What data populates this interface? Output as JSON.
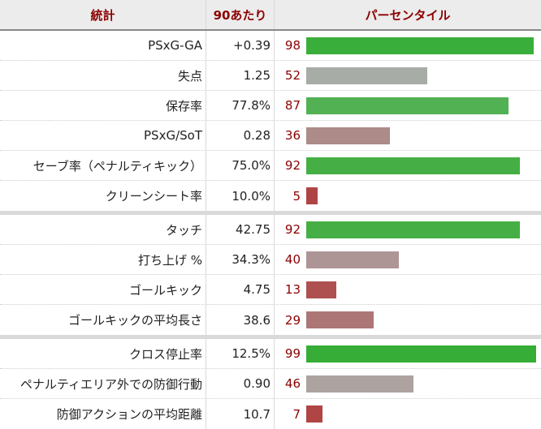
{
  "header": {
    "stat": "統計",
    "per90": "90あたり",
    "percentile": "パーセンタイル"
  },
  "sections": [
    [
      {
        "label": "PSxG-GA",
        "value": "+0.39",
        "pct": "98",
        "color": "#3aae3a"
      },
      {
        "label": "失点",
        "value": "1.25",
        "pct": "52",
        "color": "#a8aca6"
      },
      {
        "label": "保存率",
        "value": "77.8%",
        "pct": "87",
        "color": "#52b152"
      },
      {
        "label": "PSxG/SoT",
        "value": "0.28",
        "pct": "36",
        "color": "#ad8b88"
      },
      {
        "label": "セーブ率（ペナルティキック）",
        "value": "75.0%",
        "pct": "92",
        "color": "#45af45"
      },
      {
        "label": "クリーンシート率",
        "value": "10.0%",
        "pct": "5",
        "color": "#b04444"
      }
    ],
    [
      {
        "label": "タッチ",
        "value": "42.75",
        "pct": "92",
        "color": "#45af45"
      },
      {
        "label": "打ち上げ %",
        "value": "34.3%",
        "pct": "40",
        "color": "#ae9595"
      },
      {
        "label": "ゴールキック",
        "value": "4.75",
        "pct": "13",
        "color": "#ae5050"
      },
      {
        "label": "ゴールキックの平均長さ",
        "value": "38.6",
        "pct": "29",
        "color": "#ad7676"
      }
    ],
    [
      {
        "label": "クロス停止率",
        "value": "12.5%",
        "pct": "99",
        "color": "#36ad36"
      },
      {
        "label": "ペナルティエリア外での防御行動",
        "value": "0.90",
        "pct": "46",
        "color": "#aca2a0"
      },
      {
        "label": "防御アクションの平均距離",
        "value": "10.7",
        "pct": "7",
        "color": "#b04545"
      }
    ]
  ],
  "chart_data": {
    "type": "bar",
    "orientation": "horizontal",
    "title": "",
    "columns": [
      "統計",
      "90あたり",
      "パーセンタイル"
    ],
    "categories": [
      "PSxG-GA",
      "失点",
      "保存率",
      "PSxG/SoT",
      "セーブ率（ペナルティキック）",
      "クリーンシート率",
      "タッチ",
      "打ち上げ %",
      "ゴールキック",
      "ゴールキックの平均長さ",
      "クロス停止率",
      "ペナルティエリア外での防御行動",
      "防御アクションの平均距離"
    ],
    "per90": [
      "+0.39",
      "1.25",
      "77.8%",
      "0.28",
      "75.0%",
      "10.0%",
      "42.75",
      "34.3%",
      "4.75",
      "38.6",
      "12.5%",
      "0.90",
      "10.7"
    ],
    "values": [
      98,
      52,
      87,
      36,
      92,
      5,
      92,
      40,
      13,
      29,
      99,
      46,
      7
    ],
    "xlim": [
      0,
      100
    ],
    "groups": [
      [
        0,
        5
      ],
      [
        6,
        9
      ],
      [
        10,
        12
      ]
    ]
  }
}
